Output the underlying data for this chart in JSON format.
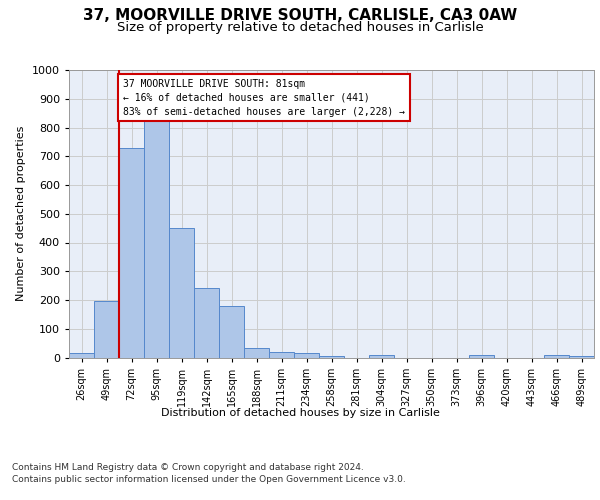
{
  "title": "37, MOORVILLE DRIVE SOUTH, CARLISLE, CA3 0AW",
  "subtitle": "Size of property relative to detached houses in Carlisle",
  "xlabel": "Distribution of detached houses by size in Carlisle",
  "ylabel": "Number of detached properties",
  "footer_line1": "Contains HM Land Registry data © Crown copyright and database right 2024.",
  "footer_line2": "Contains public sector information licensed under the Open Government Licence v3.0.",
  "bin_labels": [
    "26sqm",
    "49sqm",
    "72sqm",
    "95sqm",
    "119sqm",
    "142sqm",
    "165sqm",
    "188sqm",
    "211sqm",
    "234sqm",
    "258sqm",
    "281sqm",
    "304sqm",
    "327sqm",
    "350sqm",
    "373sqm",
    "396sqm",
    "420sqm",
    "443sqm",
    "466sqm",
    "489sqm"
  ],
  "bar_values": [
    15,
    195,
    730,
    840,
    450,
    242,
    180,
    32,
    20,
    15,
    5,
    0,
    8,
    0,
    0,
    0,
    8,
    0,
    0,
    8,
    5
  ],
  "bar_color": "#aec6e8",
  "bar_edge_color": "#5588cc",
  "property_bin_index": 2,
  "red_line_color": "#cc0000",
  "annotation_line1": "37 MOORVILLE DRIVE SOUTH: 81sqm",
  "annotation_line2": "← 16% of detached houses are smaller (441)",
  "annotation_line3": "83% of semi-detached houses are larger (2,228) →",
  "annotation_box_color": "#cc0000",
  "ylim": [
    0,
    1000
  ],
  "yticks": [
    0,
    100,
    200,
    300,
    400,
    500,
    600,
    700,
    800,
    900,
    1000
  ],
  "grid_color": "#cccccc",
  "bg_color": "#e8eef8",
  "title_fontsize": 11,
  "subtitle_fontsize": 9.5
}
